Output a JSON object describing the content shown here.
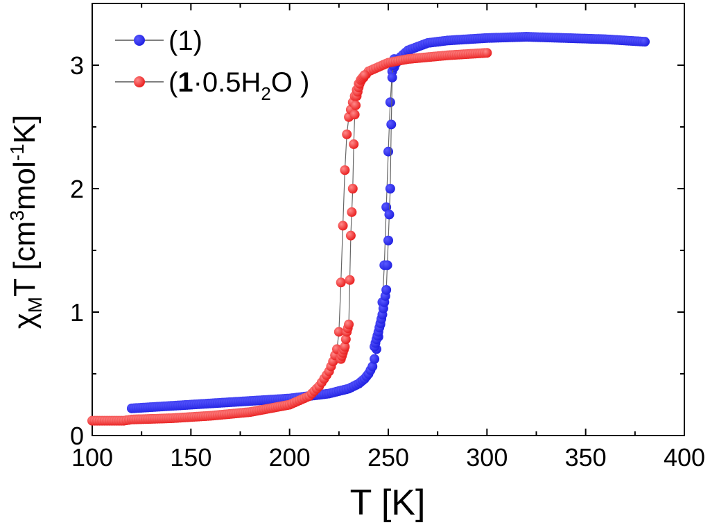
{
  "chart_data": {
    "type": "scatter",
    "title": "",
    "xlabel": "T [K]",
    "ylabel_parts": [
      "χ",
      "M",
      "T [cm",
      "3",
      "mol",
      "-1",
      "K]"
    ],
    "xlim": [
      100,
      400
    ],
    "ylim": [
      0,
      3.5
    ],
    "xticks": [
      100,
      150,
      200,
      250,
      300,
      350,
      400
    ],
    "yticks": [
      0,
      1,
      2,
      3
    ],
    "legend_position": "top-left",
    "series": [
      {
        "name": "(1)",
        "legend_parts": [
          "(1)"
        ],
        "color": "#1f1fe0",
        "highlight": "#5a5aff",
        "cooling": {
          "x": [
            120,
            140,
            160,
            180,
            200,
            210,
            220,
            225,
            230,
            235,
            238,
            240,
            242,
            243,
            244,
            245,
            246,
            247,
            248,
            249,
            250,
            251,
            252,
            255,
            260,
            270,
            280,
            300,
            320,
            340,
            360,
            380
          ],
          "y": [
            0.22,
            0.24,
            0.26,
            0.28,
            0.3,
            0.32,
            0.34,
            0.36,
            0.38,
            0.42,
            0.46,
            0.5,
            0.56,
            0.62,
            0.7,
            0.8,
            0.9,
            1.08,
            1.38,
            1.85,
            2.3,
            2.7,
            2.95,
            3.05,
            3.12,
            3.18,
            3.2,
            3.22,
            3.23,
            3.22,
            3.21,
            3.19
          ]
        },
        "heating": {
          "x": [
            243,
            245,
            247,
            249,
            250,
            251,
            251.5,
            252,
            252.5,
            253
          ],
          "y": [
            0.72,
            0.84,
            0.98,
            1.18,
            1.58,
            2.0,
            2.52,
            2.9,
            3.0,
            3.05
          ]
        }
      },
      {
        "name": "(1·0.5H2O )",
        "legend_parts": [
          "(",
          "1",
          "·0.5H",
          "2",
          "O )"
        ],
        "color": "#e81b1b",
        "highlight": "#ff8a8a",
        "cooling": {
          "x": [
            100,
            110,
            116,
            120,
            140,
            160,
            180,
            200,
            210,
            215,
            220,
            222,
            224,
            225,
            226,
            227,
            228,
            229,
            230,
            232,
            235,
            240,
            250,
            260,
            280,
            300
          ],
          "y": [
            0.12,
            0.12,
            0.12,
            0.13,
            0.14,
            0.16,
            0.19,
            0.25,
            0.32,
            0.4,
            0.52,
            0.6,
            0.7,
            0.84,
            1.24,
            1.7,
            2.15,
            2.44,
            2.58,
            2.7,
            2.85,
            2.95,
            3.02,
            3.05,
            3.08,
            3.1
          ]
        },
        "heating": {
          "x": [
            226,
            228,
            229,
            230,
            231,
            232,
            232.5,
            233,
            234,
            235,
            236,
            238
          ],
          "y": [
            0.62,
            0.72,
            0.84,
            0.9,
            1.62,
            2.0,
            2.36,
            2.6,
            2.75,
            2.82,
            2.88,
            2.92
          ]
        }
      }
    ]
  }
}
